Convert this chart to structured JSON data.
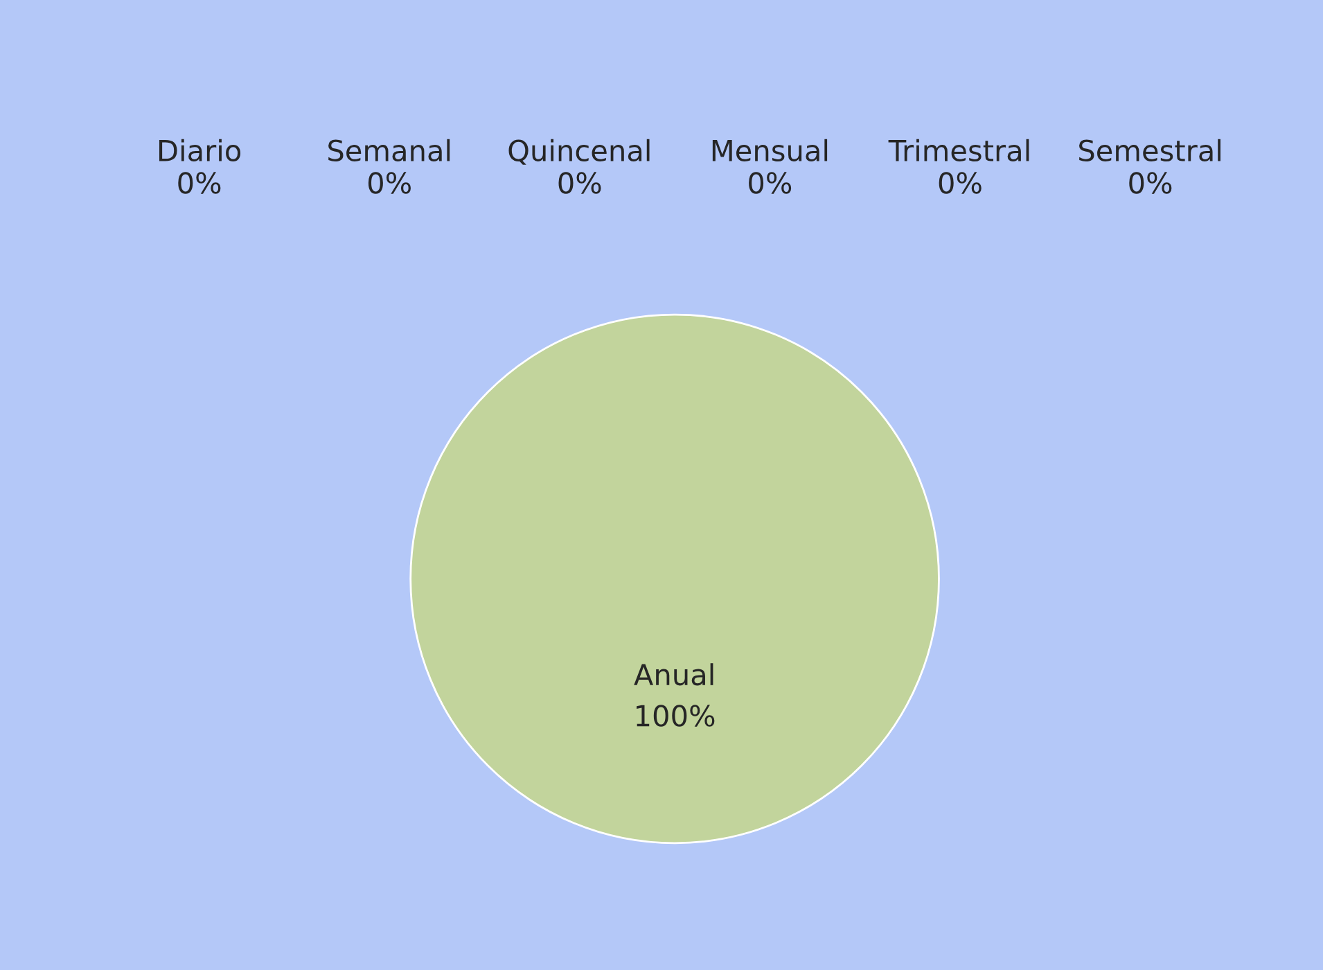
{
  "chart_data": {
    "type": "pie",
    "categories": [
      "Diario",
      "Semanal",
      "Quincenal",
      "Mensual",
      "Trimestral",
      "Semestral",
      "Anual"
    ],
    "values": [
      0,
      0,
      0,
      0,
      0,
      0,
      100
    ],
    "value_labels": [
      "0%",
      "0%",
      "0%",
      "0%",
      "0%",
      "0%",
      "100%"
    ],
    "colors": [
      "#4f81bd",
      "#c0504d",
      "#9bbb59",
      "#8064a2",
      "#4bacc6",
      "#f79646",
      "#c2d49c"
    ],
    "legend": false
  }
}
